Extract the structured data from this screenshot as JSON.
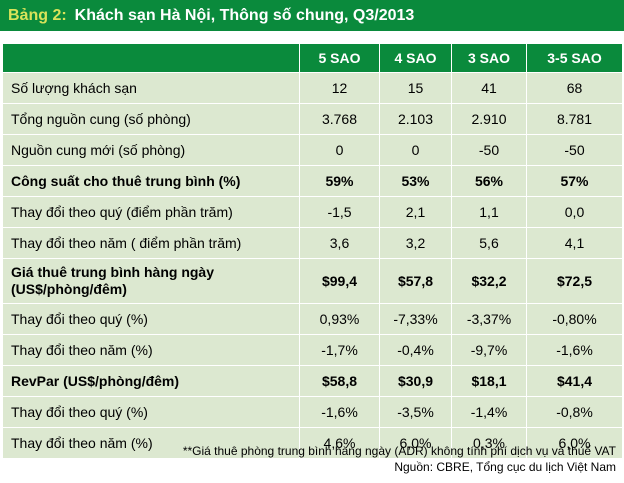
{
  "title": {
    "number": "Bảng 2:",
    "text": "Khách sạn Hà Nội, Thông số chung, Q3/2013"
  },
  "table": {
    "headers": [
      "",
      "5 SAO",
      "4 SAO",
      "3 SAO",
      "3-5 SAO"
    ],
    "rows": [
      {
        "label": "Số lượng khách sạn",
        "values": [
          "12",
          "15",
          "41",
          "68"
        ]
      },
      {
        "label": "Tổng nguồn cung (số phòng)",
        "values": [
          "3.768",
          "2.103",
          "2.910",
          "8.781"
        ]
      },
      {
        "label": "Nguồn cung mới (số phòng)",
        "values": [
          "0",
          "0",
          "-50",
          "-50"
        ]
      },
      {
        "label": "Công suất cho thuê trung bình (%)",
        "values": [
          "59%",
          "53%",
          "56%",
          "57%"
        ]
      },
      {
        "label": "Thay đổi theo quý (điểm phần trăm)",
        "values": [
          "-1,5",
          "2,1",
          "1,1",
          "0,0"
        ]
      },
      {
        "label": "Thay đổi theo năm ( điểm phần trăm)",
        "values": [
          "3,6",
          "3,2",
          "5,6",
          "4,1"
        ]
      },
      {
        "label": "Giá thuê trung bình hàng ngày",
        "label2": "(US$/phòng/đêm)",
        "values": [
          "$99,4",
          "$57,8",
          "$32,2",
          "$72,5"
        ]
      },
      {
        "label": "Thay đổi theo quý (%)",
        "values": [
          "0,93%",
          "-7,33%",
          "-3,37%",
          "-0,80%"
        ]
      },
      {
        "label": "Thay đổi theo năm (%)",
        "values": [
          "-1,7%",
          "-0,4%",
          "-9,7%",
          "-1,6%"
        ]
      },
      {
        "label": "RevPar (US$/phòng/đêm)",
        "values": [
          "$58,8",
          "$30,9",
          "$18,1",
          "$41,4"
        ]
      },
      {
        "label": "Thay đổi theo quý (%)",
        "values": [
          "-1,6%",
          "-3,5%",
          "-1,4%",
          "-0,8%"
        ]
      },
      {
        "label": "Thay đổi theo năm  (%)",
        "values": [
          "4,6%",
          "6,0%",
          "0,3%",
          "6,0%"
        ]
      }
    ]
  },
  "footnote": {
    "line1": "**Giá thuê phòng trung bình hàng ngày (ADR) không tính phí dịch vụ và thuế VAT",
    "line2": "Nguồn: CBRE, Tổng cục du lịch Việt Nam"
  },
  "colors": {
    "header_green": "#0a8a3c",
    "row_green": "#dce8d0",
    "title_accent": "#d9e35a"
  }
}
